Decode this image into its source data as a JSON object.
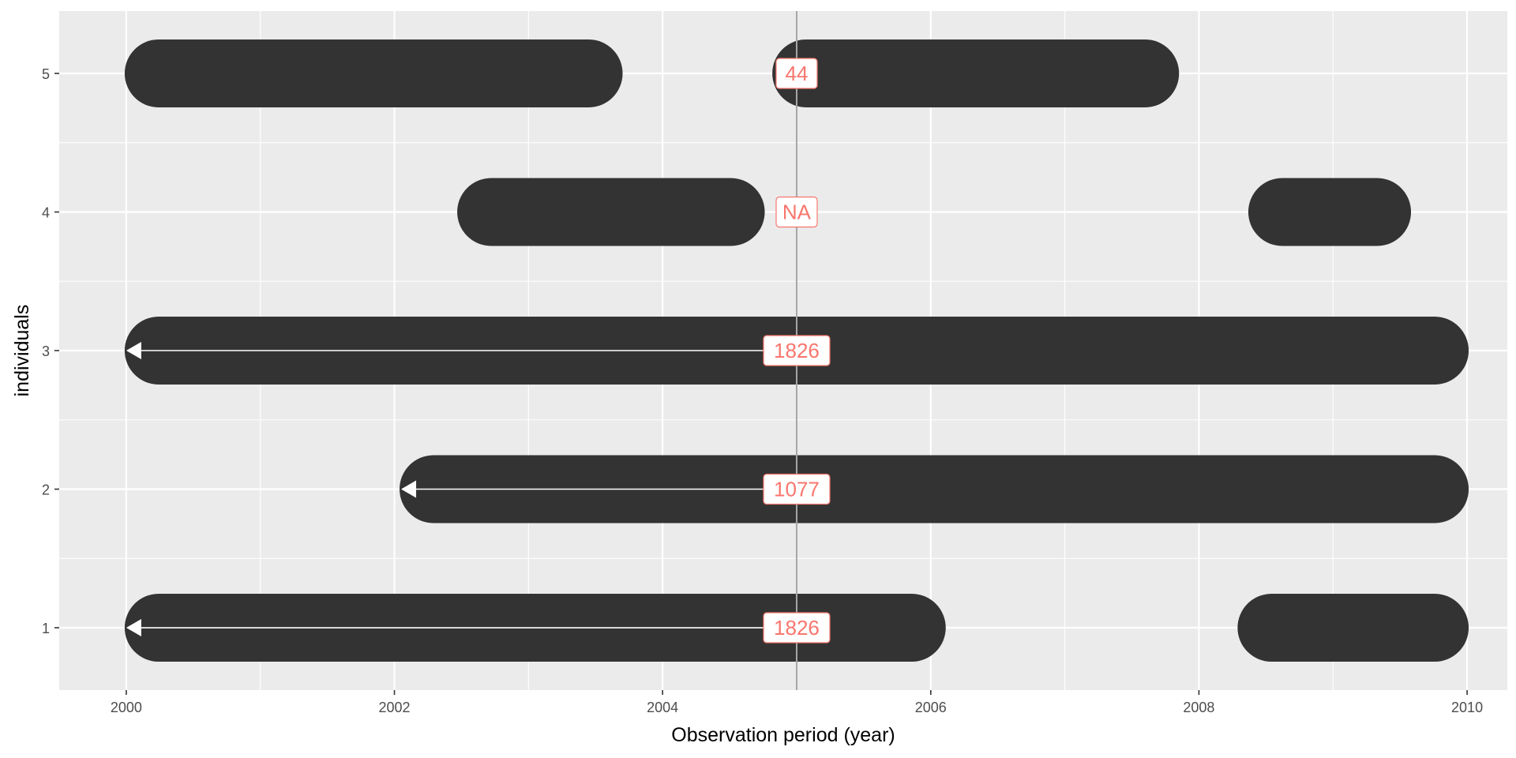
{
  "chart_data": {
    "type": "timeline",
    "xlabel": "Observation period (year)",
    "ylabel": "individuals",
    "xlim": [
      1999.5,
      2010.3
    ],
    "ylim": [
      0.55,
      5.45
    ],
    "x_ticks": [
      2000,
      2002,
      2004,
      2006,
      2008,
      2010
    ],
    "x_tick_labels": [
      "2000",
      "2002",
      "2004",
      "2006",
      "2008",
      "2010"
    ],
    "y_ticks": [
      1,
      2,
      3,
      4,
      5
    ],
    "y_tick_labels": [
      "1",
      "2",
      "3",
      "4",
      "5"
    ],
    "reference_x": 2005.0,
    "grid": true,
    "segments": [
      {
        "individual": 1,
        "start": 2000.0,
        "end": 2006.1
      },
      {
        "individual": 1,
        "start": 2008.3,
        "end": 2010.0
      },
      {
        "individual": 2,
        "start": 2002.05,
        "end": 2010.0
      },
      {
        "individual": 3,
        "start": 2000.0,
        "end": 2010.0
      },
      {
        "individual": 4,
        "start": 2002.48,
        "end": 2004.75
      },
      {
        "individual": 4,
        "start": 2008.38,
        "end": 2009.57
      },
      {
        "individual": 5,
        "start": 2000.0,
        "end": 2003.69
      },
      {
        "individual": 5,
        "start": 2004.83,
        "end": 2007.84
      }
    ],
    "arrows": [
      {
        "individual": 1,
        "to": 2000.0
      },
      {
        "individual": 2,
        "to": 2002.05
      },
      {
        "individual": 3,
        "to": 2000.0
      },
      {
        "individual": 5,
        "to": 2004.88
      }
    ],
    "labels": [
      {
        "individual": 1,
        "text": "1826"
      },
      {
        "individual": 2,
        "text": "1077"
      },
      {
        "individual": 3,
        "text": "1826"
      },
      {
        "individual": 4,
        "text": "NA"
      },
      {
        "individual": 5,
        "text": "44"
      }
    ]
  },
  "colors": {
    "panel": "#ebebeb",
    "grid": "#ffffff",
    "segment": "#333333",
    "label_text": "#f8766d",
    "reference_line": "#a6a6a6"
  }
}
